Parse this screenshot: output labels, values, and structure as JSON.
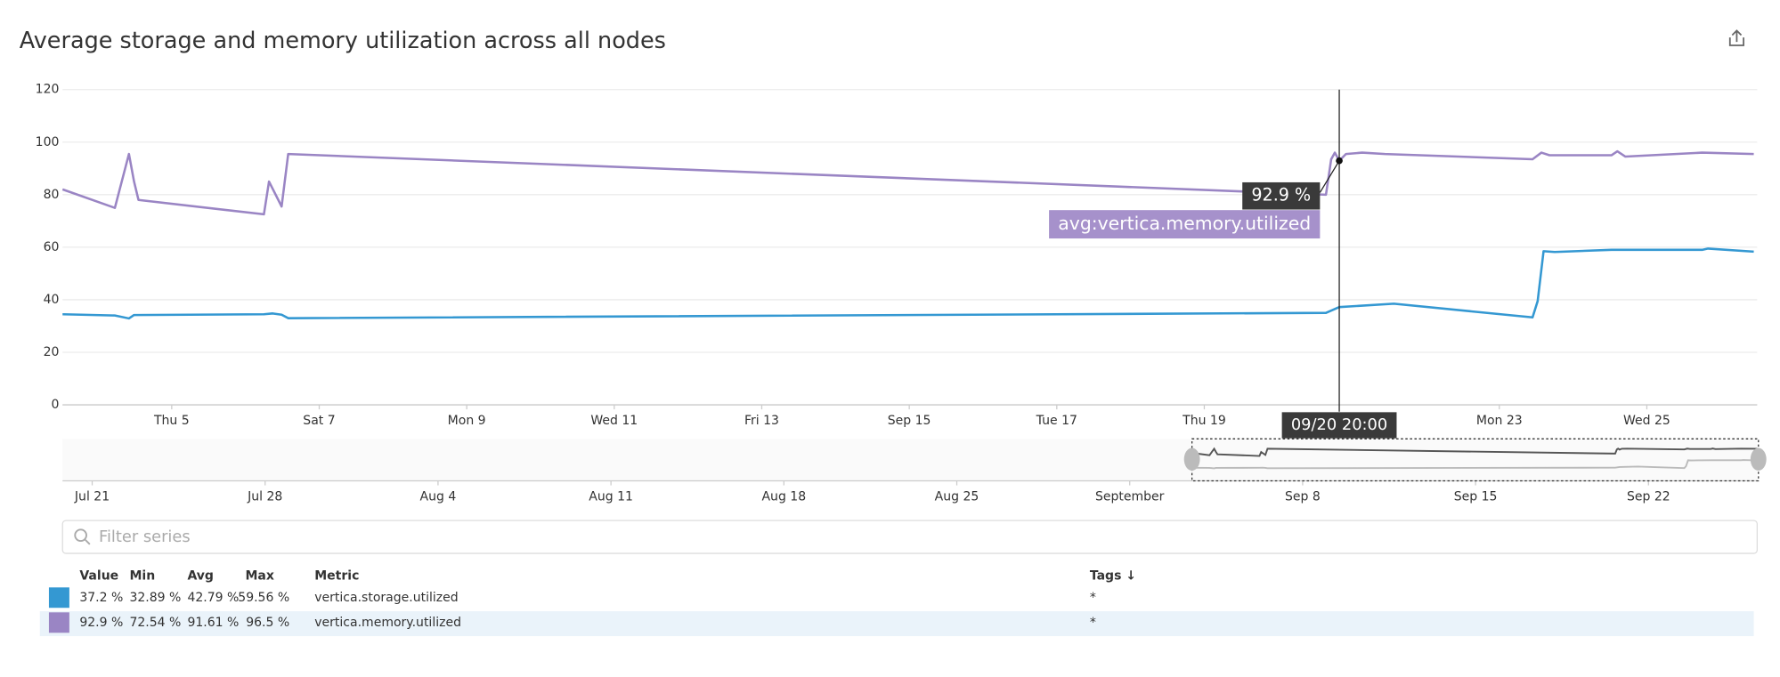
{
  "header": {
    "title": "Average storage and memory utilization across all nodes"
  },
  "chart_data": {
    "type": "line",
    "xlim": [
      3.52,
      26.45
    ],
    "xticks": [
      {
        "value": 5,
        "label": "Thu 5"
      },
      {
        "value": 7,
        "label": "Sat 7"
      },
      {
        "value": 9,
        "label": "Mon 9"
      },
      {
        "value": 11,
        "label": "Wed 11"
      },
      {
        "value": 13,
        "label": "Fri 13"
      },
      {
        "value": 15,
        "label": "Sep 15"
      },
      {
        "value": 17,
        "label": "Tue 17"
      },
      {
        "value": 19,
        "label": "Thu 19"
      },
      {
        "value": 23,
        "label": "Mon 23"
      },
      {
        "value": 25,
        "label": "Wed 25"
      }
    ],
    "ylim": [
      0,
      120
    ],
    "yticks": [
      0,
      20,
      40,
      60,
      80,
      100,
      120
    ],
    "grid": true,
    "series": [
      {
        "name": "vertica.storage.utilized",
        "color": "#3498d2",
        "x": [
          3.52,
          4.23,
          4.42,
          4.49,
          6.25,
          6.37,
          6.49,
          6.58,
          20.65,
          20.83,
          21.57,
          23.45,
          23.52,
          23.6,
          23.75,
          24.52,
          25.75,
          25.83,
          26.45
        ],
        "values": [
          34.5,
          34,
          32.9,
          34.2,
          34.5,
          34.8,
          34.3,
          33,
          35,
          37.2,
          38.5,
          33.3,
          39.5,
          58.5,
          58.2,
          59,
          59,
          59.5,
          58.3
        ]
      },
      {
        "name": "vertica.memory.utilized",
        "color": "#9a85c4",
        "x": [
          3.52,
          4.23,
          4.42,
          4.49,
          4.55,
          6.25,
          6.32,
          6.49,
          6.58,
          20.65,
          20.72,
          20.77,
          20.83,
          20.92,
          21.14,
          21.45,
          23.45,
          23.57,
          23.68,
          24.52,
          24.6,
          24.71,
          25.75,
          26.45
        ],
        "values": [
          82,
          75,
          95.5,
          85,
          78,
          72.5,
          85,
          75.5,
          95.5,
          80,
          93.5,
          96,
          92.9,
          95.5,
          96,
          95.5,
          93.5,
          96,
          95,
          95,
          96.5,
          94.5,
          96,
          95.5
        ]
      }
    ],
    "tooltip": {
      "time": "09/20 20:00",
      "value_label": "92.9 %",
      "series_label": "avg:vertica.memory.utilized"
    },
    "navigator": {
      "xlim": [
        -42.2,
        26.4
      ],
      "xticks": [
        {
          "value": -41,
          "label": "Jul 21"
        },
        {
          "value": -34,
          "label": "Jul 28"
        },
        {
          "value": -27,
          "label": "Aug 4"
        },
        {
          "value": -20,
          "label": "Aug 11"
        },
        {
          "value": -13,
          "label": "Aug 18"
        },
        {
          "value": -6,
          "label": "Aug 25"
        },
        {
          "value": 1,
          "label": "September"
        },
        {
          "value": 8,
          "label": "Sep 8"
        },
        {
          "value": 15,
          "label": "Sep 15"
        },
        {
          "value": 22,
          "label": "Sep 22"
        }
      ]
    }
  },
  "filter": {
    "placeholder": "Filter series"
  },
  "legend_table": {
    "columns": {
      "value": "Value",
      "min": "Min",
      "avg": "Avg",
      "max": "Max",
      "metric": "Metric",
      "tags": "Tags ↓"
    },
    "rows": [
      {
        "value": "37.2 %",
        "min": "32.89 %",
        "avg": "42.79 %",
        "max": "59.56 %",
        "tags": "*"
      },
      {
        "value": "92.9 %",
        "min": "72.54 %",
        "avg": "91.61 %",
        "max": "96.5 %",
        "tags": "*"
      }
    ]
  }
}
